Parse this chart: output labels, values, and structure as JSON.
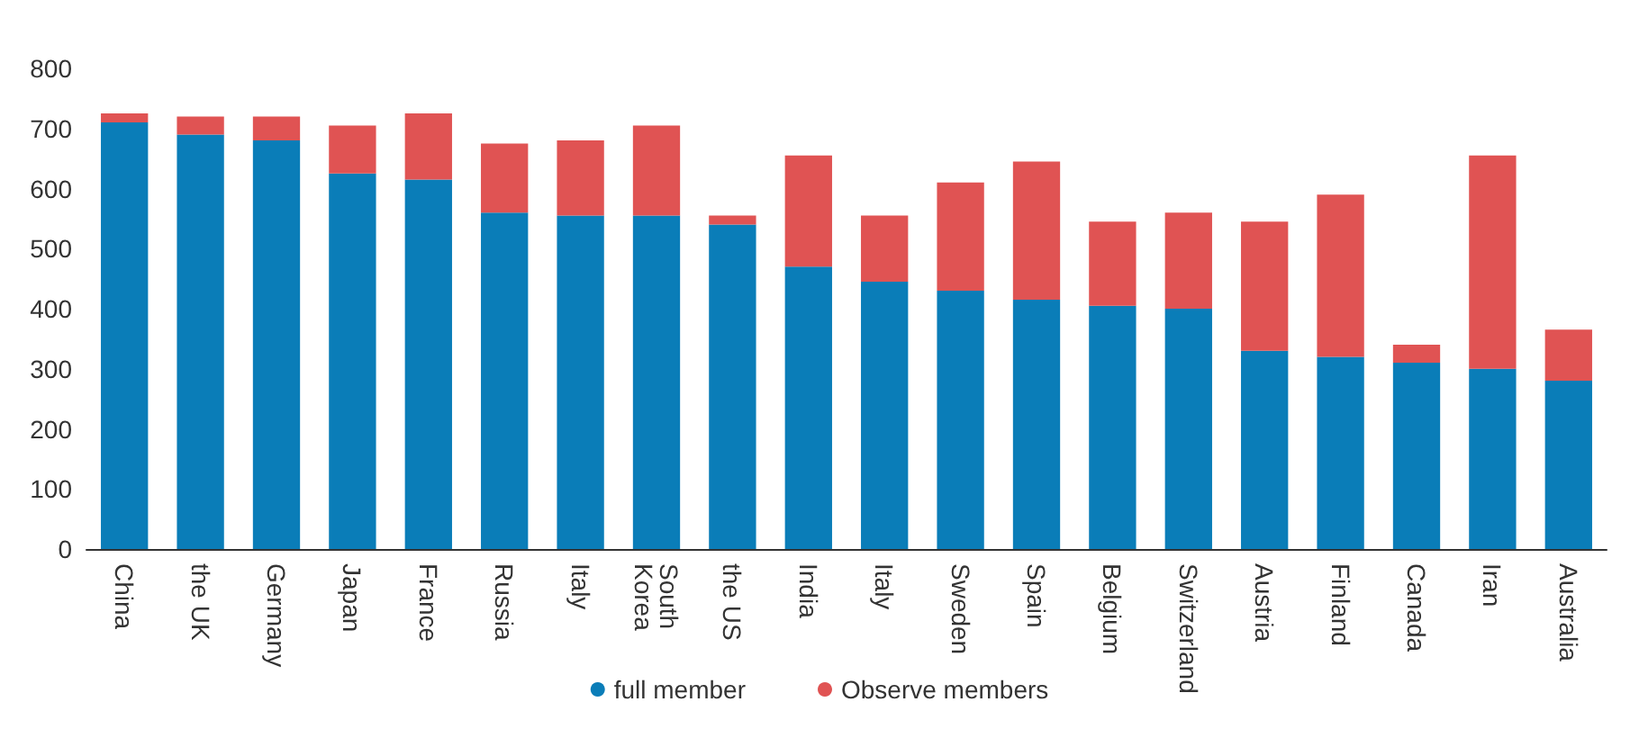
{
  "chart_data": {
    "type": "bar",
    "stacked": true,
    "categories": [
      "China",
      "the UK",
      "Germany",
      "Japan",
      "France",
      "Russia",
      "Italy",
      "South Korea",
      "the US",
      "India",
      "Italy",
      "Sweden",
      "Spain",
      "Belgium",
      "Switzerland",
      "Austria",
      "Finland",
      "Canada",
      "Iran",
      "Australia"
    ],
    "series": [
      {
        "name": "full member",
        "color": "#0a7db8",
        "values": [
          710,
          690,
          680,
          625,
          615,
          560,
          555,
          555,
          540,
          470,
          445,
          430,
          415,
          405,
          400,
          330,
          320,
          310,
          300,
          280
        ]
      },
      {
        "name": "Observe members",
        "color": "#e05353",
        "values": [
          15,
          30,
          40,
          80,
          110,
          115,
          125,
          150,
          15,
          185,
          110,
          180,
          230,
          140,
          160,
          215,
          270,
          30,
          355,
          85
        ]
      }
    ],
    "ylim": [
      0,
      800
    ],
    "yticks": [
      0,
      100,
      200,
      300,
      400,
      500,
      600,
      700,
      800
    ],
    "grid": false,
    "legend": "bottom"
  }
}
